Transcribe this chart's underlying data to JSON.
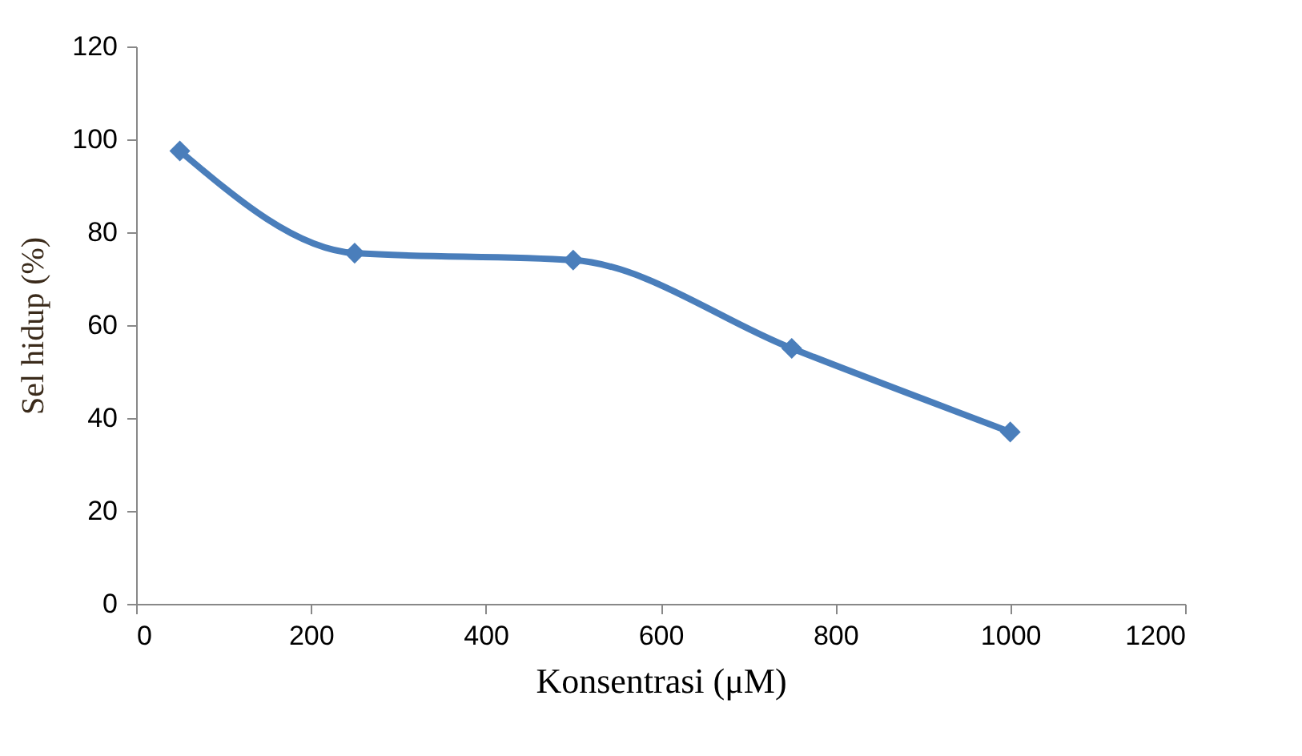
{
  "chart_data": {
    "type": "line",
    "xlabel": "Konsentrasi (μM)",
    "ylabel": "Sel hidup (%)",
    "x": [
      50,
      250,
      500,
      750,
      1000
    ],
    "series": [
      {
        "color": "#4a7ebb",
        "values": [
          97.5,
          75.5,
          74,
          55,
          37
        ]
      }
    ],
    "xlim": [
      0,
      1200
    ],
    "xticks": [
      0,
      200,
      400,
      600,
      800,
      1000,
      1200
    ],
    "ylim": [
      0,
      120
    ],
    "yticks": [
      0,
      20,
      40,
      60,
      80,
      100,
      120
    ],
    "marker": "diamond",
    "line_style": "solid",
    "grid": false
  }
}
